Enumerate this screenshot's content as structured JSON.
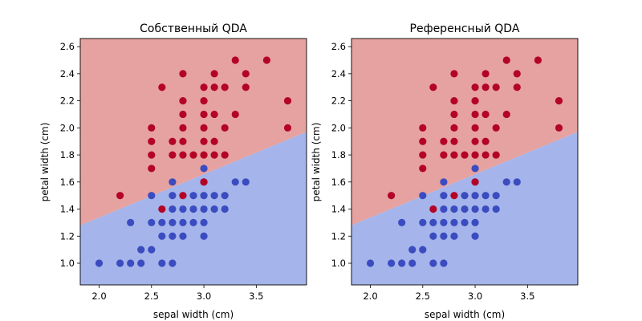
{
  "colors": {
    "class_red_region": "#e5a2a0",
    "class_blue_region": "#a5b4ea",
    "class_red_point": "#b40426",
    "class_blue_point": "#3b4cc0"
  },
  "chart_data": [
    {
      "type": "scatter",
      "title": "Собственный QDA",
      "xlabel": "sepal width (cm)",
      "ylabel": "petal width (cm)",
      "xlim": [
        1.82,
        3.98
      ],
      "ylim": [
        0.84,
        2.66
      ],
      "xticks": [
        "2.0",
        "2.5",
        "3.0",
        "3.5"
      ],
      "yticks": [
        "1.0",
        "1.2",
        "1.4",
        "1.6",
        "1.8",
        "2.0",
        "2.2",
        "2.4",
        "2.6"
      ],
      "boundary_line": [
        [
          1.82,
          1.28
        ],
        [
          3.98,
          1.97
        ]
      ],
      "regions": [
        {
          "class": "red",
          "side": "above"
        },
        {
          "class": "blue",
          "side": "below"
        }
      ],
      "series": [
        {
          "class": "blue",
          "points": [
            [
              2.0,
              1.0
            ],
            [
              2.2,
              1.0
            ],
            [
              2.3,
              1.0
            ],
            [
              2.4,
              1.0
            ],
            [
              2.6,
              1.0
            ],
            [
              2.7,
              1.0
            ],
            [
              2.4,
              1.1
            ],
            [
              2.5,
              1.1
            ],
            [
              2.6,
              1.2
            ],
            [
              2.7,
              1.2
            ],
            [
              2.8,
              1.2
            ],
            [
              3.0,
              1.2
            ],
            [
              2.3,
              1.3
            ],
            [
              2.5,
              1.3
            ],
            [
              2.6,
              1.3
            ],
            [
              2.7,
              1.3
            ],
            [
              2.8,
              1.3
            ],
            [
              2.9,
              1.3
            ],
            [
              3.0,
              1.3
            ],
            [
              2.7,
              1.4
            ],
            [
              2.8,
              1.4
            ],
            [
              2.9,
              1.4
            ],
            [
              3.0,
              1.4
            ],
            [
              3.1,
              1.4
            ],
            [
              3.2,
              1.4
            ],
            [
              2.5,
              1.5
            ],
            [
              2.7,
              1.5
            ],
            [
              2.9,
              1.5
            ],
            [
              3.0,
              1.5
            ],
            [
              3.1,
              1.5
            ],
            [
              3.2,
              1.5
            ],
            [
              2.7,
              1.6
            ],
            [
              3.0,
              1.6
            ],
            [
              3.3,
              1.6
            ],
            [
              3.4,
              1.6
            ],
            [
              3.0,
              1.7
            ]
          ]
        },
        {
          "class": "red",
          "points": [
            [
              2.2,
              1.5
            ],
            [
              2.8,
              1.5
            ],
            [
              2.6,
              1.4
            ],
            [
              3.0,
              1.6
            ],
            [
              2.5,
              1.7
            ],
            [
              2.5,
              1.8
            ],
            [
              2.7,
              1.8
            ],
            [
              2.8,
              1.8
            ],
            [
              2.9,
              1.8
            ],
            [
              3.0,
              1.8
            ],
            [
              3.1,
              1.8
            ],
            [
              3.2,
              1.8
            ],
            [
              2.5,
              1.9
            ],
            [
              2.7,
              1.9
            ],
            [
              2.8,
              1.9
            ],
            [
              3.0,
              1.9
            ],
            [
              3.1,
              1.9
            ],
            [
              2.5,
              2.0
            ],
            [
              2.8,
              2.0
            ],
            [
              3.0,
              2.0
            ],
            [
              3.2,
              2.0
            ],
            [
              3.8,
              2.0
            ],
            [
              2.8,
              2.1
            ],
            [
              3.0,
              2.1
            ],
            [
              3.1,
              2.1
            ],
            [
              3.3,
              2.1
            ],
            [
              2.8,
              2.2
            ],
            [
              3.0,
              2.2
            ],
            [
              3.8,
              2.2
            ],
            [
              3.0,
              2.3
            ],
            [
              3.1,
              2.3
            ],
            [
              3.2,
              2.3
            ],
            [
              3.4,
              2.3
            ],
            [
              2.6,
              2.3
            ],
            [
              2.8,
              2.4
            ],
            [
              3.1,
              2.4
            ],
            [
              3.4,
              2.4
            ],
            [
              3.3,
              2.5
            ],
            [
              3.6,
              2.5
            ]
          ]
        }
      ]
    },
    {
      "type": "scatter",
      "title": "Референсный QDA",
      "xlabel": "sepal width (cm)",
      "ylabel": "petal width (cm)",
      "xlim": [
        1.82,
        3.98
      ],
      "ylim": [
        0.84,
        2.66
      ],
      "xticks": [
        "2.0",
        "2.5",
        "3.0",
        "3.5"
      ],
      "yticks": [
        "1.0",
        "1.2",
        "1.4",
        "1.6",
        "1.8",
        "2.0",
        "2.2",
        "2.4",
        "2.6"
      ],
      "boundary_line": [
        [
          1.82,
          1.28
        ],
        [
          3.98,
          1.97
        ]
      ],
      "regions": [
        {
          "class": "red",
          "side": "above"
        },
        {
          "class": "blue",
          "side": "below"
        }
      ],
      "series": [
        {
          "class": "blue",
          "points": [
            [
              2.0,
              1.0
            ],
            [
              2.2,
              1.0
            ],
            [
              2.3,
              1.0
            ],
            [
              2.4,
              1.0
            ],
            [
              2.6,
              1.0
            ],
            [
              2.7,
              1.0
            ],
            [
              2.4,
              1.1
            ],
            [
              2.5,
              1.1
            ],
            [
              2.6,
              1.2
            ],
            [
              2.7,
              1.2
            ],
            [
              2.8,
              1.2
            ],
            [
              3.0,
              1.2
            ],
            [
              2.3,
              1.3
            ],
            [
              2.5,
              1.3
            ],
            [
              2.6,
              1.3
            ],
            [
              2.7,
              1.3
            ],
            [
              2.8,
              1.3
            ],
            [
              2.9,
              1.3
            ],
            [
              3.0,
              1.3
            ],
            [
              2.7,
              1.4
            ],
            [
              2.8,
              1.4
            ],
            [
              2.9,
              1.4
            ],
            [
              3.0,
              1.4
            ],
            [
              3.1,
              1.4
            ],
            [
              3.2,
              1.4
            ],
            [
              2.5,
              1.5
            ],
            [
              2.7,
              1.5
            ],
            [
              2.9,
              1.5
            ],
            [
              3.0,
              1.5
            ],
            [
              3.1,
              1.5
            ],
            [
              3.2,
              1.5
            ],
            [
              2.7,
              1.6
            ],
            [
              3.0,
              1.6
            ],
            [
              3.3,
              1.6
            ],
            [
              3.4,
              1.6
            ],
            [
              3.0,
              1.7
            ]
          ]
        },
        {
          "class": "red",
          "points": [
            [
              2.2,
              1.5
            ],
            [
              2.8,
              1.5
            ],
            [
              2.6,
              1.4
            ],
            [
              3.0,
              1.6
            ],
            [
              2.5,
              1.7
            ],
            [
              2.5,
              1.8
            ],
            [
              2.7,
              1.8
            ],
            [
              2.8,
              1.8
            ],
            [
              2.9,
              1.8
            ],
            [
              3.0,
              1.8
            ],
            [
              3.1,
              1.8
            ],
            [
              3.2,
              1.8
            ],
            [
              2.5,
              1.9
            ],
            [
              2.7,
              1.9
            ],
            [
              2.8,
              1.9
            ],
            [
              3.0,
              1.9
            ],
            [
              3.1,
              1.9
            ],
            [
              2.5,
              2.0
            ],
            [
              2.8,
              2.0
            ],
            [
              3.0,
              2.0
            ],
            [
              3.2,
              2.0
            ],
            [
              3.8,
              2.0
            ],
            [
              2.8,
              2.1
            ],
            [
              3.0,
              2.1
            ],
            [
              3.1,
              2.1
            ],
            [
              3.3,
              2.1
            ],
            [
              2.8,
              2.2
            ],
            [
              3.0,
              2.2
            ],
            [
              3.8,
              2.2
            ],
            [
              3.0,
              2.3
            ],
            [
              3.1,
              2.3
            ],
            [
              3.2,
              2.3
            ],
            [
              3.4,
              2.3
            ],
            [
              2.6,
              2.3
            ],
            [
              2.8,
              2.4
            ],
            [
              3.1,
              2.4
            ],
            [
              3.4,
              2.4
            ],
            [
              3.3,
              2.5
            ],
            [
              3.6,
              2.5
            ]
          ]
        }
      ]
    }
  ]
}
